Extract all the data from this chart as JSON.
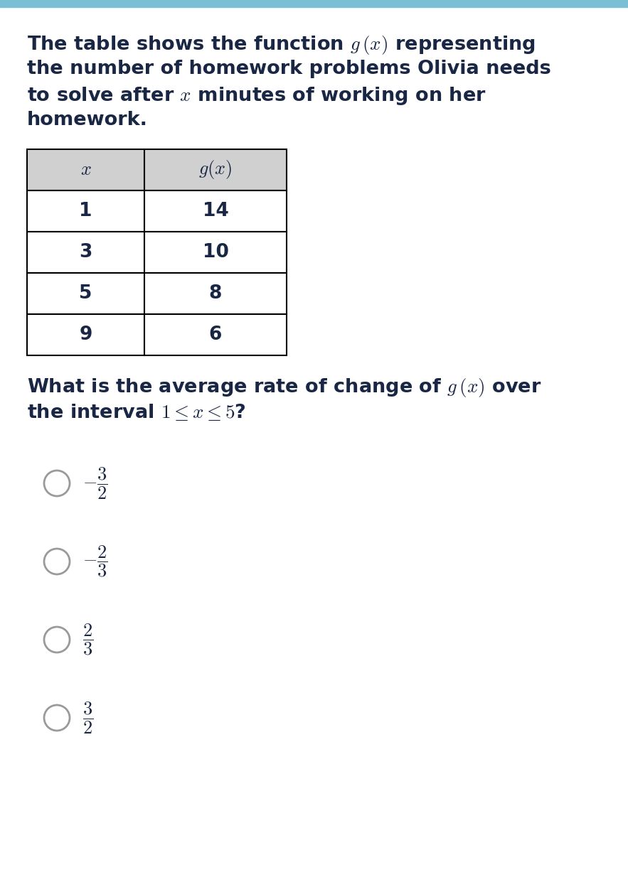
{
  "background_color": "#ffffff",
  "top_bar_color": "#7bbfd4",
  "paragraph_line1": "The table shows the function $g\\,(x)$ representing",
  "paragraph_line2": "the number of homework problems Olivia needs",
  "paragraph_line3": "to solve after $x$ minutes of working on her",
  "paragraph_line4": "homework.",
  "table_x_values": [
    "$x$",
    "1",
    "3",
    "5",
    "9"
  ],
  "table_gx_values": [
    "$g(x)$",
    "14",
    "10",
    "8",
    "6"
  ],
  "table_header_bg": "#d0d0d0",
  "table_row_bg": "#ffffff",
  "table_border_color": "#000000",
  "question_line1": "What is the average rate of change of $g\\,(x)$ over",
  "question_line2": "the interval $1 \\leq x \\leq 5$?",
  "choices": [
    "$-\\dfrac{3}{2}$",
    "$-\\dfrac{2}{3}$",
    "$\\dfrac{2}{3}$",
    "$\\dfrac{3}{2}$"
  ],
  "text_color": "#1a2744",
  "circle_color": "#9a9a9a",
  "font_size_paragraph": 19.5,
  "font_size_question": 19.5,
  "font_size_table_header": 19,
  "font_size_table_data": 19,
  "font_size_choices": 19
}
